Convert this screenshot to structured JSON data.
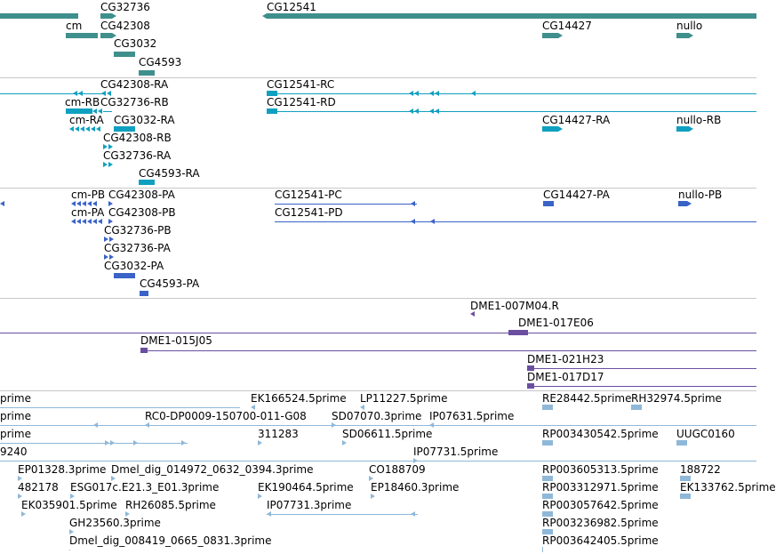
{
  "colors": {
    "gene": "#3f8f8c",
    "mrna": "#0fa0c0",
    "cds": "#3a63c8",
    "clone": "#6a4fa0",
    "est": "#8fb8d8",
    "divider": "#c8c8c8"
  },
  "tracks": [
    {
      "id": "genes",
      "color": "gene",
      "features": [
        {
          "label": "CG32736"
        },
        {
          "label": "CG12541"
        },
        {
          "label": "cm"
        },
        {
          "label": "CG42308"
        },
        {
          "label": "CG14427"
        },
        {
          "label": "nullo"
        },
        {
          "label": "CG3032"
        },
        {
          "label": "CG4593"
        }
      ]
    },
    {
      "id": "mrna",
      "color": "mrna",
      "features": [
        {
          "label": "CG42308-RA"
        },
        {
          "label": "CG12541-RC"
        },
        {
          "label": "cm-RB"
        },
        {
          "label": "CG32736-RB"
        },
        {
          "label": "CG12541-RD"
        },
        {
          "label": "cm-RA"
        },
        {
          "label": "CG3032-RA"
        },
        {
          "label": "CG14427-RA"
        },
        {
          "label": "nullo-RB"
        },
        {
          "label": "CG42308-RB"
        },
        {
          "label": "CG32736-RA"
        },
        {
          "label": "CG4593-RA"
        }
      ]
    },
    {
      "id": "cds",
      "color": "cds",
      "features": [
        {
          "label": "cm-PB"
        },
        {
          "label": "CG42308-PA"
        },
        {
          "label": "CG12541-PC"
        },
        {
          "label": "CG14427-PA"
        },
        {
          "label": "nullo-PB"
        },
        {
          "label": "cm-PA"
        },
        {
          "label": "CG42308-PB"
        },
        {
          "label": "CG12541-PD"
        },
        {
          "label": "CG32736-PB"
        },
        {
          "label": "CG32736-PA"
        },
        {
          "label": "CG3032-PA"
        },
        {
          "label": "CG4593-PA"
        }
      ]
    },
    {
      "id": "clones",
      "color": "clone",
      "features": [
        {
          "label": "DME1-007M04.R"
        },
        {
          "label": "DME1-017E06"
        },
        {
          "label": "DME1-015J05"
        },
        {
          "label": "DME1-021H23"
        },
        {
          "label": "DME1-017D17"
        }
      ]
    },
    {
      "id": "ests",
      "color": "est",
      "features": [
        {
          "label": "prime"
        },
        {
          "label": "EK166524.5prime"
        },
        {
          "label": "LP11227.5prime"
        },
        {
          "label": "RE28442.5prime"
        },
        {
          "label": "RH32974.5prime"
        },
        {
          "label": "prime"
        },
        {
          "label": "RC0-DP0009-150700-011-G08"
        },
        {
          "label": "SD07070.3prime"
        },
        {
          "label": "IP07631.5prime"
        },
        {
          "label": "prime"
        },
        {
          "label": "311283"
        },
        {
          "label": "SD06611.5prime"
        },
        {
          "label": "RP003430542.5prime"
        },
        {
          "label": "UUGC0160"
        },
        {
          "label": "9240"
        },
        {
          "label": "IP07731.5prime"
        },
        {
          "label": "EP01328.3prime"
        },
        {
          "label": "Dmel_dig_014972_0632_0394.3prime"
        },
        {
          "label": "CO188709"
        },
        {
          "label": "RP003605313.5prime"
        },
        {
          "label": "188722"
        },
        {
          "label": "482178"
        },
        {
          "label": "ESG017c.E21.3_E01.3prime"
        },
        {
          "label": "EK190464.5prime"
        },
        {
          "label": "EP18460.3prime"
        },
        {
          "label": "RP003312971.5prime"
        },
        {
          "label": "EK133762.5prime"
        },
        {
          "label": "EK035901.5prime"
        },
        {
          "label": "RH26085.5prime"
        },
        {
          "label": "IP07731.3prime"
        },
        {
          "label": "RP003057642.5prime"
        },
        {
          "label": "GH23560.3prime"
        },
        {
          "label": "RP003236982.5prime"
        },
        {
          "label": "Dmel_dig_008419_0665_0831.3prime"
        },
        {
          "label": "RP003642405.5prime"
        }
      ]
    }
  ]
}
